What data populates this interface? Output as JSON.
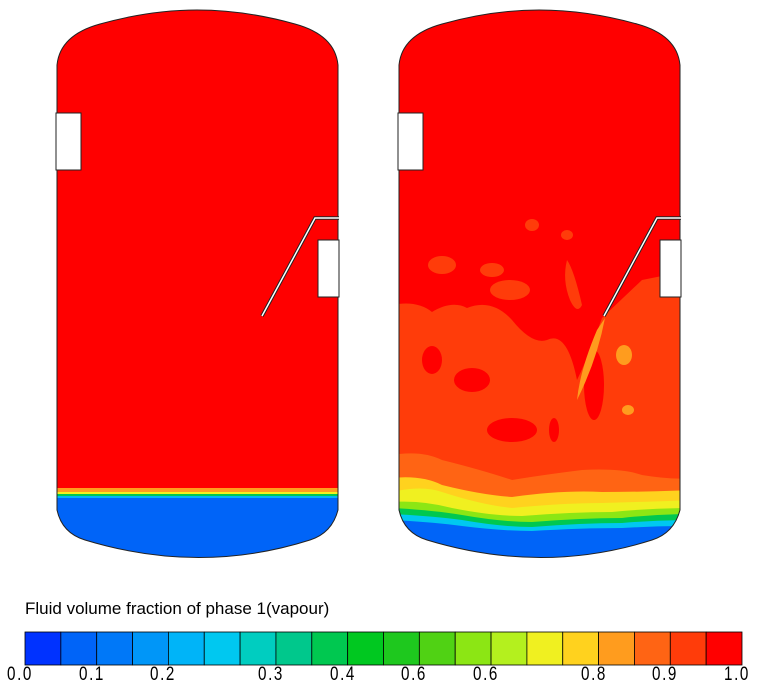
{
  "chart_data": {
    "type": "heatmap",
    "title": "",
    "panels": [
      {
        "description_label": "",
        "field": "vapour volume fraction"
      },
      {
        "description_label": "",
        "field": "vapour volume fraction"
      }
    ],
    "colorbar": {
      "title": "Fluid volume fraction of phase 1(vapour)",
      "range": [
        0.0,
        1.0
      ],
      "levels": 20,
      "tick_labels": [
        "0.0",
        "0.1",
        "0.2",
        "0.3",
        "0.4",
        "0.6",
        "0.6",
        "0.8",
        "0.9",
        "1.0"
      ],
      "colors": [
        "#0032ff",
        "#0064f8",
        "#0078f8",
        "#0096f8",
        "#00b4f8",
        "#00c8f0",
        "#00cdc0",
        "#00c88c",
        "#00c850",
        "#00c820",
        "#1ec81e",
        "#50d214",
        "#8ce614",
        "#b4f01e",
        "#f0f020",
        "#ffd21e",
        "#ff9c1e",
        "#ff6414",
        "#ff3c0a",
        "#ff0000"
      ]
    }
  }
}
